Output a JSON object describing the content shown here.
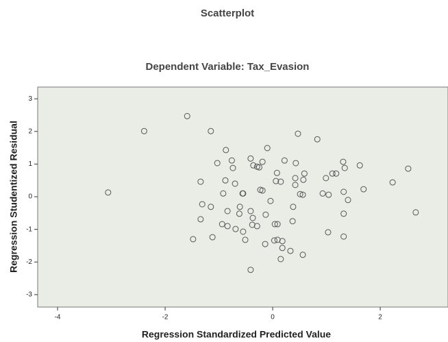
{
  "chart_data": {
    "type": "scatter",
    "title": "Scatterplot",
    "subtitle": "Dependent Variable: Tax_Evasion",
    "x_label": "Regression Standardized Predicted Value",
    "y_label": "Regression Studentized Residual",
    "xlim": [
      -4.37,
      3.26
    ],
    "ylim": [
      -3.38,
      3.36
    ],
    "xticks": [
      -4,
      -2,
      0,
      2
    ],
    "yticks": [
      -3,
      -2,
      -1,
      0,
      1,
      2,
      3
    ],
    "color": "#555555",
    "x": [
      -3.06,
      -2.39,
      -1.59,
      -1.15,
      -1.34,
      -1.31,
      -1.34,
      -1.15,
      -1.48,
      -1.12,
      -1.03,
      -0.87,
      -0.76,
      -0.74,
      -0.88,
      -0.7,
      -0.92,
      -0.84,
      -0.94,
      -0.84,
      -0.69,
      -0.62,
      -0.61,
      -0.55,
      -0.56,
      -0.55,
      -0.51,
      -0.41,
      -0.36,
      -0.29,
      -0.25,
      -0.19,
      -0.23,
      -0.19,
      -0.41,
      -0.37,
      -0.38,
      -0.29,
      -0.1,
      -0.13,
      -0.04,
      -0.41,
      -0.14,
      0.03,
      0.09,
      0.04,
      0.09,
      0.06,
      0.08,
      0.15,
      0.18,
      0.18,
      0.15,
      0.22,
      0.33,
      0.38,
      0.37,
      0.43,
      0.42,
      0.42,
      0.47,
      0.51,
      0.56,
      0.57,
      0.59,
      0.56,
      0.83,
      0.93,
      0.99,
      1.04,
      1.03,
      1.11,
      1.18,
      1.31,
      1.34,
      1.32,
      1.32,
      1.32,
      1.4,
      1.62,
      1.69,
      2.23,
      2.52,
      2.66
    ],
    "values": [
      0.13,
      2.01,
      2.47,
      2.01,
      0.46,
      -0.23,
      -0.69,
      -0.31,
      -1.3,
      -1.24,
      1.03,
      1.43,
      1.11,
      0.88,
      0.5,
      0.4,
      0.1,
      -0.44,
      -0.84,
      -0.9,
      -0.99,
      -0.52,
      -0.31,
      0.1,
      0.1,
      -1.07,
      -1.32,
      1.17,
      0.96,
      0.92,
      0.9,
      1.07,
      0.21,
      0.19,
      -0.44,
      -0.65,
      -0.86,
      -0.9,
      1.49,
      -0.55,
      -0.13,
      -2.24,
      -1.45,
      -1.34,
      -1.32,
      -0.84,
      -0.84,
      0.48,
      0.73,
      0.46,
      -1.36,
      -1.57,
      -1.91,
      1.11,
      -1.66,
      -0.31,
      -0.75,
      1.03,
      0.57,
      0.36,
      1.93,
      0.08,
      0.06,
      0.52,
      0.71,
      -1.78,
      1.76,
      0.1,
      0.57,
      0.06,
      -1.09,
      0.71,
      0.71,
      1.07,
      0.88,
      0.15,
      -0.52,
      -1.22,
      -0.1,
      0.96,
      0.23,
      0.44,
      0.86,
      -0.48
    ]
  }
}
